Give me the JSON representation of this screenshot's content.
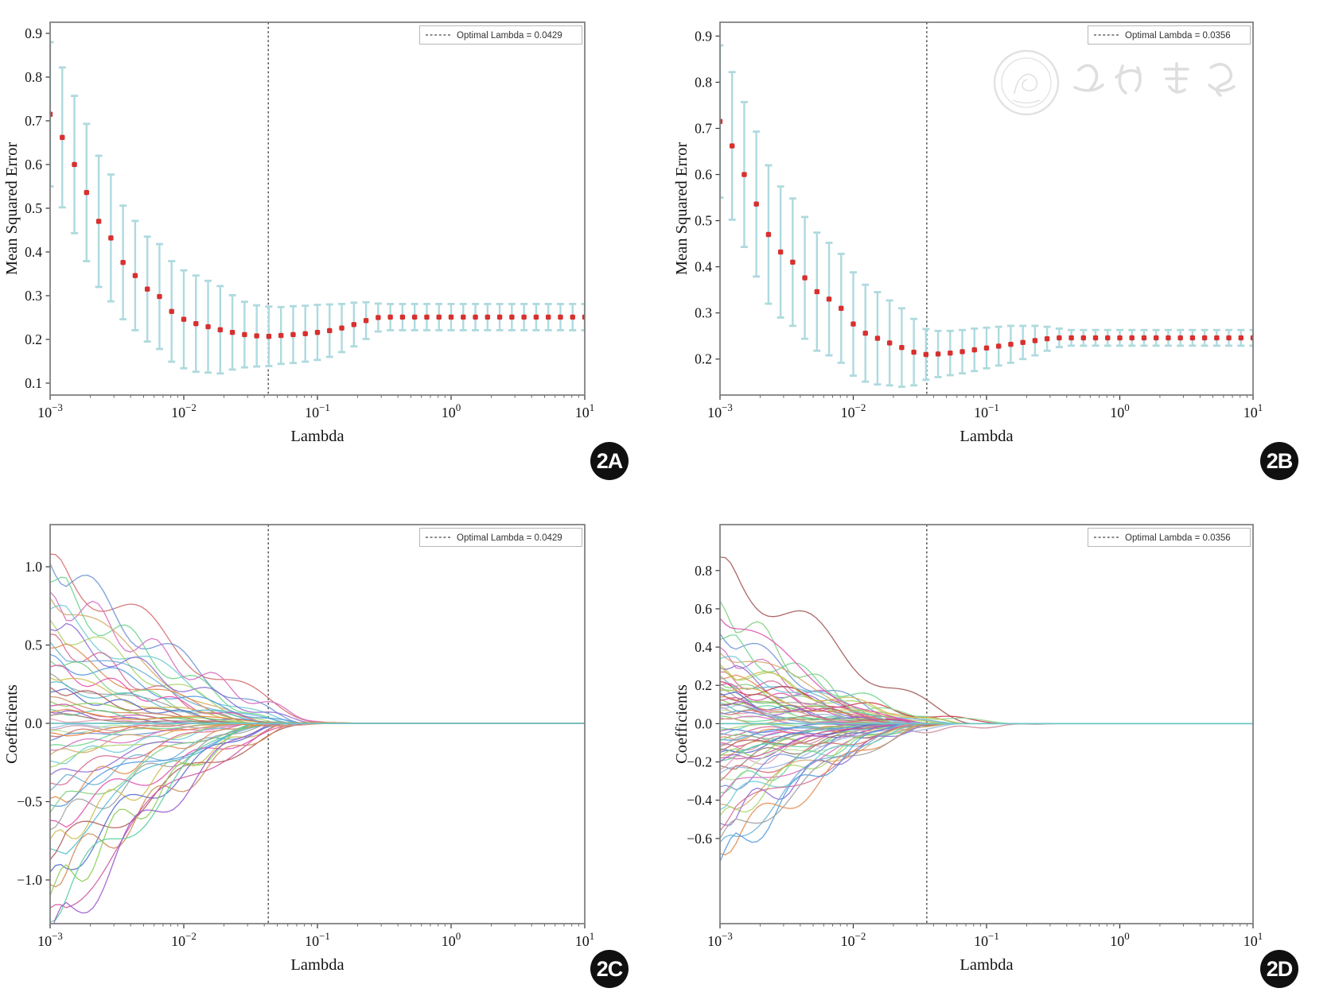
{
  "figure": {
    "background": "#ffffff"
  },
  "badges": {
    "a": "2A",
    "b": "2B",
    "c": "2C",
    "d": "2D"
  },
  "watermark": {
    "organization": "中华医学会"
  },
  "chart_data": [
    {
      "id": "2A",
      "type": "scatter",
      "subtype": "errorbar-cv-curve",
      "xlabel": "Lambda",
      "ylabel": "Mean Squared Error",
      "legend": "Optimal Lambda = 0.0429",
      "legend_position": "upper right",
      "optimal_lambda": 0.0429,
      "x_scale": "log",
      "xlim": [
        0.001,
        10
      ],
      "x_tick_labels": [
        "10^-3",
        "10^-2",
        "10^-1",
        "10^0",
        "10^1"
      ],
      "ylim": [
        0.07,
        0.93
      ],
      "yticks": [
        0.9,
        0.8,
        0.7,
        0.6,
        0.5,
        0.4,
        0.3,
        0.2,
        0.1
      ],
      "ytick_labels": [
        "0.9",
        "0.8",
        "0.7",
        "0.6",
        "0.5",
        "0.4",
        "0.3",
        "0.2",
        "0.1"
      ],
      "grid": false,
      "marker_color": "#d8302f",
      "errorbar_color": "#aedade",
      "n_points": 45,
      "log10_lambda_range": [
        -3,
        1
      ],
      "mse": [
        0.715,
        0.662,
        0.6,
        0.536,
        0.47,
        0.432,
        0.376,
        0.346,
        0.315,
        0.298,
        0.264,
        0.246,
        0.236,
        0.229,
        0.222,
        0.216,
        0.211,
        0.208,
        0.207,
        0.209,
        0.211,
        0.213,
        0.216,
        0.22,
        0.226,
        0.234,
        0.243,
        0.25,
        0.251,
        0.251,
        0.251,
        0.251,
        0.251,
        0.251,
        0.251,
        0.251,
        0.251,
        0.251,
        0.251,
        0.251,
        0.251,
        0.251,
        0.251,
        0.251,
        0.251
      ],
      "err": [
        0.165,
        0.16,
        0.157,
        0.157,
        0.15,
        0.145,
        0.13,
        0.125,
        0.12,
        0.12,
        0.115,
        0.112,
        0.11,
        0.105,
        0.1,
        0.085,
        0.075,
        0.07,
        0.068,
        0.065,
        0.065,
        0.064,
        0.063,
        0.06,
        0.055,
        0.05,
        0.042,
        0.032,
        0.03,
        0.03,
        0.03,
        0.03,
        0.03,
        0.03,
        0.03,
        0.03,
        0.03,
        0.03,
        0.03,
        0.03,
        0.03,
        0.03,
        0.03,
        0.03,
        0.03
      ]
    },
    {
      "id": "2B",
      "type": "scatter",
      "subtype": "errorbar-cv-curve",
      "xlabel": "Lambda",
      "ylabel": "Mean Squared Error",
      "legend": "Optimal Lambda = 0.0356",
      "legend_position": "upper right",
      "optimal_lambda": 0.0356,
      "x_scale": "log",
      "xlim": [
        0.001,
        10
      ],
      "x_tick_labels": [
        "10^-3",
        "10^-2",
        "10^-1",
        "10^0",
        "10^1"
      ],
      "ylim": [
        0.12,
        0.93
      ],
      "yticks": [
        0.9,
        0.8,
        0.7,
        0.6,
        0.5,
        0.4,
        0.3,
        0.2
      ],
      "ytick_labels": [
        "0.9",
        "0.8",
        "0.7",
        "0.6",
        "0.5",
        "0.4",
        "0.3",
        "0.2"
      ],
      "grid": false,
      "marker_color": "#d8302f",
      "errorbar_color": "#aedade",
      "n_points": 45,
      "log10_lambda_range": [
        -3,
        1
      ],
      "mse": [
        0.715,
        0.662,
        0.6,
        0.536,
        0.47,
        0.432,
        0.41,
        0.376,
        0.346,
        0.33,
        0.31,
        0.276,
        0.256,
        0.245,
        0.235,
        0.225,
        0.215,
        0.21,
        0.211,
        0.213,
        0.216,
        0.22,
        0.224,
        0.228,
        0.232,
        0.236,
        0.24,
        0.244,
        0.246,
        0.246,
        0.246,
        0.246,
        0.246,
        0.246,
        0.246,
        0.246,
        0.246,
        0.246,
        0.246,
        0.246,
        0.246,
        0.246,
        0.246,
        0.246,
        0.246
      ],
      "err": [
        0.165,
        0.16,
        0.157,
        0.157,
        0.15,
        0.142,
        0.138,
        0.132,
        0.128,
        0.122,
        0.118,
        0.112,
        0.105,
        0.1,
        0.092,
        0.085,
        0.072,
        0.055,
        0.05,
        0.048,
        0.047,
        0.046,
        0.044,
        0.042,
        0.04,
        0.036,
        0.032,
        0.026,
        0.02,
        0.017,
        0.017,
        0.017,
        0.017,
        0.017,
        0.017,
        0.017,
        0.017,
        0.017,
        0.017,
        0.017,
        0.017,
        0.017,
        0.017,
        0.017,
        0.017
      ]
    },
    {
      "id": "2C",
      "type": "line",
      "subtype": "lasso-coefficient-paths",
      "xlabel": "Lambda",
      "ylabel": "Coefficients",
      "legend": "Optimal Lambda = 0.0429",
      "legend_position": "upper right",
      "optimal_lambda": 0.0429,
      "x_scale": "log",
      "xlim": [
        0.001,
        10
      ],
      "x_tick_labels": [
        "10^-3",
        "10^-2",
        "10^-1",
        "10^0",
        "10^1"
      ],
      "ylim": [
        -1.28,
        1.27
      ],
      "yticks": [
        1.0,
        0.5,
        0.0,
        -0.5,
        -1.0
      ],
      "ytick_labels": [
        "1.0",
        "0.5",
        "0.0",
        "−0.5",
        "−1.0"
      ],
      "grid": false,
      "zero_line_color": "#6fc7c4",
      "lines_format": "[start_coefficient_at_lambda_0.001, decades_from_1e-3_where_coef_reaches_0, seed, optional_color]",
      "lines": [
        [
          1.08,
          2.05,
          1
        ],
        [
          1.02,
          1.9,
          2
        ],
        [
          0.9,
          1.75,
          3
        ],
        [
          0.84,
          2.1,
          4
        ],
        [
          0.8,
          1.6,
          5
        ],
        [
          0.73,
          1.85,
          6
        ],
        [
          0.66,
          1.7,
          7
        ],
        [
          0.6,
          2.0,
          8
        ],
        [
          0.57,
          1.5,
          9
        ],
        [
          0.52,
          1.8,
          10
        ],
        [
          0.48,
          1.65,
          11
        ],
        [
          0.44,
          1.9,
          12
        ],
        [
          0.4,
          1.55,
          13
        ],
        [
          0.36,
          1.75,
          14
        ],
        [
          0.32,
          1.45,
          15
        ],
        [
          0.29,
          1.6,
          16
        ],
        [
          0.26,
          1.85,
          17
        ],
        [
          0.23,
          1.4,
          18
        ],
        [
          0.2,
          1.7,
          19
        ],
        [
          0.17,
          1.3,
          20
        ],
        [
          0.14,
          1.55,
          21
        ],
        [
          0.11,
          1.2,
          22
        ],
        [
          0.09,
          1.45,
          23
        ],
        [
          0.07,
          1.1,
          24
        ],
        [
          0.05,
          1.35,
          25
        ],
        [
          0.03,
          0.95,
          26
        ],
        [
          -0.03,
          1.0,
          27
        ],
        [
          -0.05,
          1.3,
          28
        ],
        [
          -0.08,
          1.15,
          29
        ],
        [
          -0.11,
          1.5,
          30
        ],
        [
          -0.14,
          1.25,
          31
        ],
        [
          -0.17,
          1.6,
          32
        ],
        [
          -0.2,
          1.35,
          33
        ],
        [
          -0.24,
          1.7,
          34
        ],
        [
          -0.28,
          1.45,
          35
        ],
        [
          -0.33,
          1.8,
          36
        ],
        [
          -0.38,
          1.5,
          37
        ],
        [
          -0.43,
          1.9,
          38
        ],
        [
          -0.48,
          1.6,
          39
        ],
        [
          -0.52,
          1.75,
          40
        ],
        [
          -0.57,
          1.55,
          41
        ],
        [
          -0.62,
          1.95,
          42
        ],
        [
          -0.68,
          1.65,
          43
        ],
        [
          -0.74,
          1.8,
          44
        ],
        [
          -0.8,
          1.55,
          45
        ],
        [
          -0.87,
          1.95,
          46
        ],
        [
          -0.95,
          1.7,
          47
        ],
        [
          -1.03,
          1.85,
          48
        ],
        [
          -1.1,
          1.6,
          49
        ],
        [
          -1.18,
          1.75,
          50
        ],
        [
          -1.27,
          1.5,
          51
        ],
        [
          -1.35,
          1.65,
          52
        ],
        [
          0.07,
          2.35,
          60,
          "#e8883a"
        ],
        [
          -0.06,
          2.3,
          61,
          "#e8883a"
        ],
        [
          -0.04,
          2.4,
          62,
          "#c09ca6"
        ]
      ]
    },
    {
      "id": "2D",
      "type": "line",
      "subtype": "lasso-coefficient-paths",
      "xlabel": "Lambda",
      "ylabel": "Coefficients",
      "legend": "Optimal Lambda = 0.0356",
      "legend_position": "upper right",
      "optimal_lambda": 0.0356,
      "x_scale": "log",
      "xlim": [
        0.001,
        10
      ],
      "x_tick_labels": [
        "10^-3",
        "10^-2",
        "10^-1",
        "10^0",
        "10^1"
      ],
      "ylim": [
        -1.04,
        1.04
      ],
      "yticks": [
        0.8,
        0.6,
        0.4,
        0.2,
        0.0,
        -0.2,
        -0.4,
        -0.6
      ],
      "ytick_labels": [
        "0.8",
        "0.6",
        "0.4",
        "0.2",
        "0.0",
        "−0.2",
        "−0.4",
        "−0.6"
      ],
      "grid": false,
      "zero_line_color": "#6fc7c4",
      "lines_format": "[start_coefficient_at_lambda_0.001, decades_from_1e-3_where_coef_reaches_0, seed, optional_color]",
      "lines": [
        [
          0.87,
          1.9,
          1,
          "#a05252"
        ],
        [
          0.47,
          1.5,
          2
        ],
        [
          0.44,
          1.8,
          3
        ],
        [
          0.4,
          1.4,
          4
        ],
        [
          0.37,
          1.65,
          5
        ],
        [
          0.34,
          1.5,
          6
        ],
        [
          0.31,
          1.7,
          7
        ],
        [
          0.29,
          1.35,
          8
        ],
        [
          0.27,
          1.55,
          9
        ],
        [
          0.25,
          1.75,
          10
        ],
        [
          0.235,
          1.45,
          11
        ],
        [
          0.22,
          2.2,
          12,
          "#cc3344"
        ],
        [
          0.21,
          1.3,
          13
        ],
        [
          0.2,
          1.6,
          14
        ],
        [
          0.19,
          1.45,
          15
        ],
        [
          0.18,
          1.7,
          16
        ],
        [
          0.17,
          2.3,
          17,
          "#8fd68f"
        ],
        [
          0.16,
          1.55,
          18
        ],
        [
          0.15,
          1.25,
          19
        ],
        [
          0.14,
          1.5,
          20
        ],
        [
          0.13,
          1.4,
          21
        ],
        [
          0.12,
          1.65,
          22
        ],
        [
          0.11,
          1.3,
          23
        ],
        [
          0.1,
          1.55,
          24
        ],
        [
          0.095,
          1.2,
          25
        ],
        [
          0.09,
          1.45,
          26
        ],
        [
          0.08,
          1.6,
          27
        ],
        [
          0.07,
          1.35,
          28
        ],
        [
          0.06,
          1.5,
          29
        ],
        [
          0.05,
          1.25,
          30
        ],
        [
          0.04,
          1.4,
          31
        ],
        [
          0.03,
          1.1,
          32
        ],
        [
          0.02,
          1.3,
          33
        ],
        [
          -0.02,
          1.2,
          34
        ],
        [
          -0.03,
          1.45,
          35
        ],
        [
          -0.04,
          1.3,
          36
        ],
        [
          -0.05,
          1.55,
          37
        ],
        [
          -0.06,
          1.4,
          38
        ],
        [
          -0.07,
          1.6,
          39
        ],
        [
          -0.08,
          1.3,
          40
        ],
        [
          -0.09,
          1.5,
          41
        ],
        [
          -0.1,
          1.7,
          42
        ],
        [
          -0.11,
          1.35,
          43
        ],
        [
          -0.12,
          2.5,
          44,
          "#cc8899"
        ],
        [
          -0.13,
          1.45,
          45
        ],
        [
          -0.14,
          1.65,
          46
        ],
        [
          -0.15,
          1.3,
          47
        ],
        [
          -0.16,
          1.5,
          48
        ],
        [
          -0.17,
          1.75,
          49
        ],
        [
          -0.18,
          1.4,
          50
        ],
        [
          -0.19,
          1.6,
          51
        ],
        [
          -0.2,
          1.45,
          52
        ],
        [
          -0.22,
          1.7,
          53
        ],
        [
          -0.24,
          1.5,
          54
        ],
        [
          -0.26,
          1.8,
          55
        ],
        [
          -0.28,
          1.55,
          56
        ],
        [
          -0.3,
          1.65,
          57
        ],
        [
          -0.33,
          1.4,
          58
        ],
        [
          -0.36,
          1.6,
          59
        ],
        [
          -0.39,
          1.5,
          60
        ],
        [
          -0.42,
          1.7,
          61
        ],
        [
          -0.45,
          1.55,
          62
        ],
        [
          -0.48,
          1.45,
          63
        ],
        [
          -0.52,
          1.6,
          64
        ],
        [
          -0.56,
          1.5,
          65
        ],
        [
          -0.62,
          1.4,
          66
        ],
        [
          -0.68,
          1.55,
          67
        ],
        [
          -0.72,
          1.35,
          68
        ],
        [
          0.64,
          1.3,
          69
        ],
        [
          0.55,
          1.45,
          70
        ],
        [
          -0.6,
          1.6,
          71
        ],
        [
          0.3,
          1.85,
          72
        ]
      ]
    }
  ],
  "palette": [
    "#d46a6a",
    "#6a8fd4",
    "#6ad48b",
    "#d46ac0",
    "#d4a96a",
    "#6ac9d4",
    "#a9d46a",
    "#8b6ad4",
    "#d46a8f",
    "#6aaed4",
    "#e08a4e",
    "#4e9ae0",
    "#7ece7e",
    "#e04ead",
    "#9e9e9e",
    "#cdbd4e",
    "#4ebdcd",
    "#b05656",
    "#5668cd",
    "#cd8a56",
    "#8acd56",
    "#cd56a0",
    "#56cd9a",
    "#9a56cd",
    "#8f7a66",
    "#e299b5",
    "#99b5e2",
    "#b5e299"
  ]
}
